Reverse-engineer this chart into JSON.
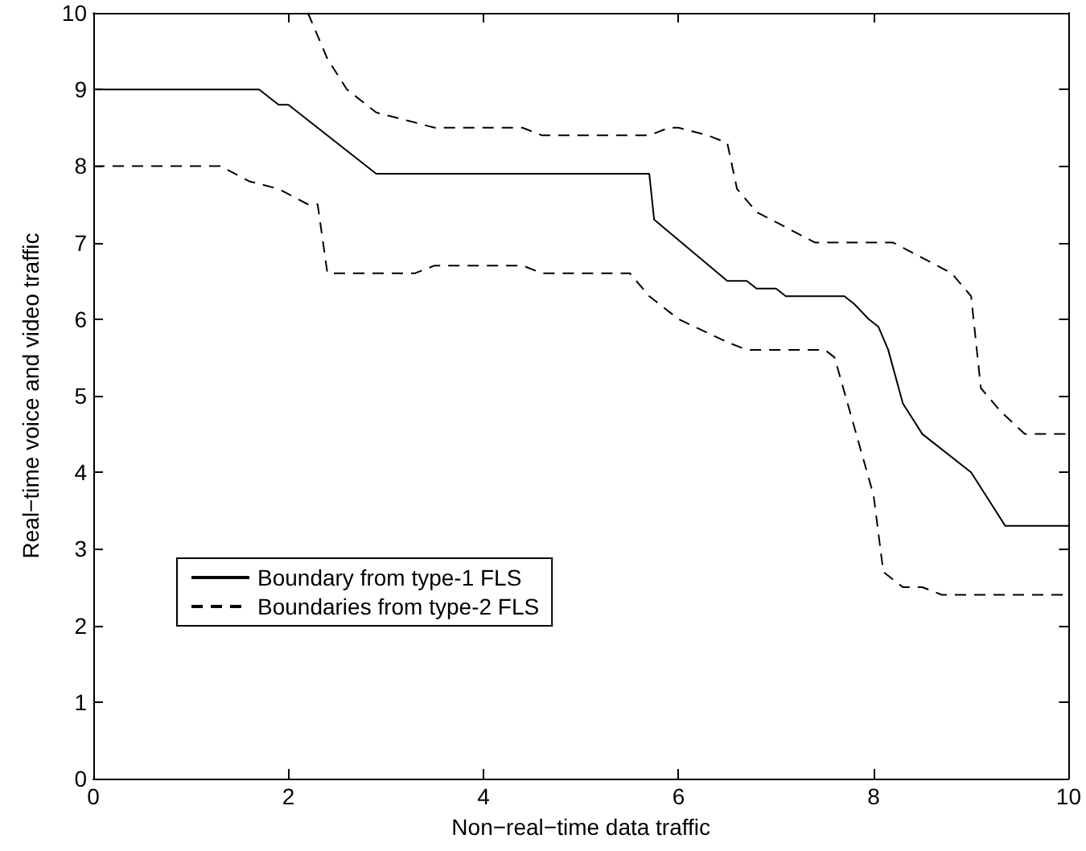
{
  "chart_data": {
    "type": "line",
    "xlabel": "Non−real−time data traffic",
    "ylabel": "Real−time voice and video traffic",
    "xlim": [
      0,
      10
    ],
    "ylim": [
      0,
      10
    ],
    "xticks": [
      0,
      2,
      4,
      6,
      8,
      10
    ],
    "yticks": [
      0,
      1,
      2,
      3,
      4,
      5,
      6,
      7,
      8,
      9,
      10
    ],
    "grid": false,
    "legend": "bottom left",
    "marker": "none",
    "series": [
      {
        "name": "Boundary from type-1 FLS",
        "color": "#000000",
        "line_style": "solid",
        "x": [
          0,
          1.7,
          1.9,
          2.0,
          2.9,
          5.7,
          5.75,
          6.5,
          6.7,
          6.8,
          7.0,
          7.1,
          7.7,
          7.8,
          7.95,
          8.05,
          8.15,
          8.3,
          8.5,
          9.0,
          9.25,
          9.35,
          10
        ],
        "values": [
          9,
          9,
          8.8,
          8.8,
          7.9,
          7.9,
          7.3,
          6.5,
          6.5,
          6.4,
          6.4,
          6.3,
          6.3,
          6.2,
          6.0,
          5.9,
          5.6,
          4.9,
          4.5,
          4.0,
          3.5,
          3.3,
          3.3
        ]
      },
      {
        "name": "Boundaries from type-2 FLS",
        "color": "#000000",
        "line_style": "dashed",
        "x": [
          2.2,
          2.4,
          2.6,
          2.9,
          3.2,
          3.5,
          4.4,
          4.6,
          5.7,
          5.9,
          6.0,
          6.3,
          6.5,
          6.6,
          6.8,
          7.1,
          7.4,
          8.2,
          8.5,
          8.8,
          9.0,
          9.1,
          9.3,
          9.55,
          10
        ],
        "values": [
          10,
          9.4,
          9.0,
          8.7,
          8.6,
          8.5,
          8.5,
          8.4,
          8.4,
          8.5,
          8.5,
          8.4,
          8.3,
          7.7,
          7.4,
          7.2,
          7.0,
          7.0,
          6.8,
          6.6,
          6.3,
          5.1,
          4.8,
          4.5,
          4.5
        ]
      },
      {
        "color": "#000000",
        "line_style": "dashed",
        "x": [
          0,
          1.3,
          1.6,
          1.9,
          2.2,
          2.3,
          2.4,
          3.3,
          3.5,
          4.4,
          4.6,
          5.5,
          5.7,
          6.0,
          6.5,
          6.7,
          7.5,
          7.6,
          7.8,
          8.0,
          8.1,
          8.3,
          8.5,
          8.7,
          10
        ],
        "values": [
          8,
          8,
          7.8,
          7.7,
          7.5,
          7.5,
          6.6,
          6.6,
          6.7,
          6.7,
          6.6,
          6.6,
          6.3,
          6.0,
          5.7,
          5.6,
          5.6,
          5.5,
          4.6,
          3.7,
          2.7,
          2.5,
          2.5,
          2.4,
          2.4
        ]
      }
    ]
  }
}
